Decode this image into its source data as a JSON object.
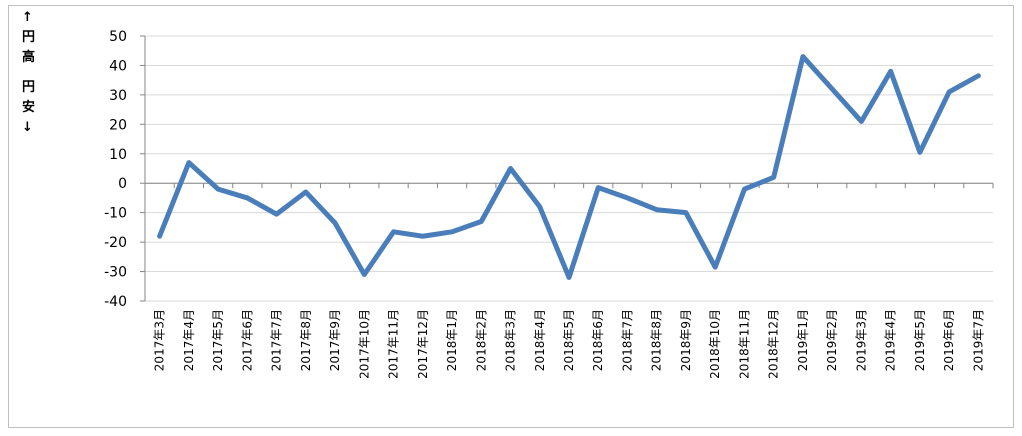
{
  "chart_data": {
    "type": "line",
    "ylabel_top": "↑円高",
    "ylabel_bottom": "円安↓",
    "categories": [
      "2017年3月",
      "2017年4月",
      "2017年5月",
      "2017年6月",
      "2017年7月",
      "2017年8月",
      "2017年9月",
      "2017年10月",
      "2017年11月",
      "2017年12月",
      "2018年1月",
      "2018年2月",
      "2018年3月",
      "2018年4月",
      "2018年5月",
      "2018年6月",
      "2018年7月",
      "2018年8月",
      "2018年9月",
      "2018年10月",
      "2018年11月",
      "2018年12月",
      "2019年1月",
      "2019年2月",
      "2019年3月",
      "2019年4月",
      "2019年5月",
      "2019年6月",
      "2019年7月"
    ],
    "values": [
      -18,
      7,
      -2,
      -5,
      -10.5,
      -3,
      -13.5,
      -31,
      -16.5,
      -18,
      -16.5,
      -13,
      5,
      -8,
      -32,
      -1.5,
      -5,
      -9,
      -10,
      -28.5,
      -2,
      2,
      43,
      32,
      21,
      38,
      10.5,
      31,
      36.5
    ],
    "color": "#4a7ebb",
    "ylim": [
      -40,
      50
    ],
    "yticks": [
      -40,
      -30,
      -20,
      -10,
      0,
      10,
      20,
      30,
      40,
      50
    ],
    "grid": true
  }
}
